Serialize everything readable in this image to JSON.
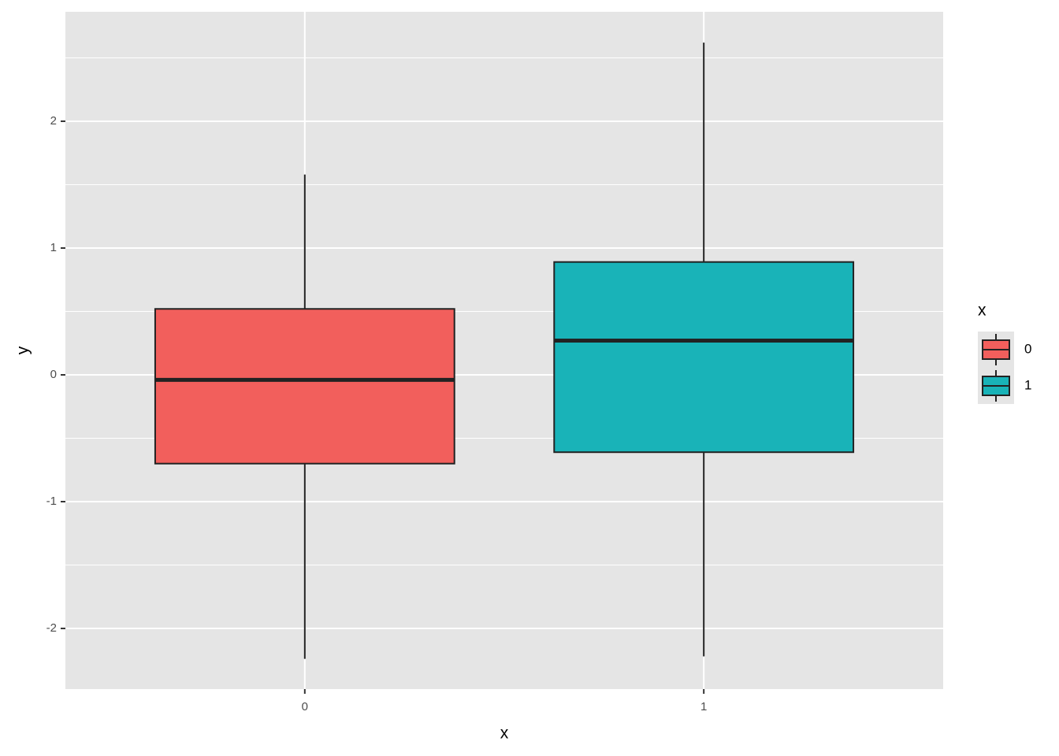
{
  "chart_data": {
    "type": "box",
    "x_label": "x",
    "y_label": "y",
    "categories": [
      "0",
      "1"
    ],
    "boxes": [
      {
        "name": "0",
        "color": "#f25f5c",
        "whisker_low": -2.24,
        "q1": -0.7,
        "median": -0.04,
        "q3": 0.52,
        "whisker_high": 1.58
      },
      {
        "name": "1",
        "color": "#19b3b8",
        "whisker_low": -2.22,
        "q1": -0.61,
        "median": 0.27,
        "q3": 0.89,
        "whisker_high": 2.62
      }
    ],
    "ylim": [
      -2.478,
      2.863
    ],
    "yticks": [
      -2,
      -1,
      0,
      1,
      2
    ],
    "yminorticks": [
      -1.5,
      -0.5,
      0.5,
      1.5,
      2.5
    ],
    "grid": true,
    "legend_title": "x",
    "legend_position": "right"
  }
}
